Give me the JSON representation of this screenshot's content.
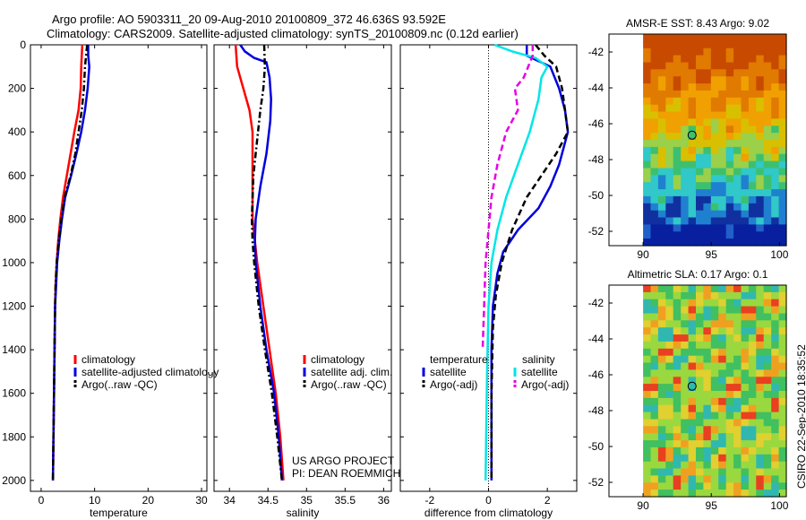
{
  "header": {
    "line1": "Argo profile: AO 5903311_20 09-Aug-2010 20100809_372 46.636S 93.592E",
    "line2": "Climatology: CARS2009. Satellite-adjusted climatology: synTS_20100809.nc (0.12d earlier)"
  },
  "chart_data": [
    {
      "type": "line",
      "id": "temperature",
      "xlabel": "temperature",
      "ylabel": "",
      "xlim": [
        -2,
        31
      ],
      "ylim": [
        2050,
        0
      ],
      "y_reversed": true,
      "xticks": [
        0,
        10,
        20,
        30
      ],
      "yticks": [
        0,
        200,
        400,
        600,
        800,
        1000,
        1200,
        1400,
        1600,
        1800,
        2000
      ],
      "legend": {
        "placement": "lower-middle",
        "entries": [
          "climatology",
          "satellite-adjusted climatology",
          "Argo(..raw -QC)"
        ]
      },
      "series": [
        {
          "name": "climatology",
          "color": "#ff0000",
          "dash": "solid",
          "points": [
            [
              7.7,
              0
            ],
            [
              7.6,
              50
            ],
            [
              7.5,
              100
            ],
            [
              7.4,
              200
            ],
            [
              7.0,
              300
            ],
            [
              6.2,
              400
            ],
            [
              5.5,
              500
            ],
            [
              4.8,
              600
            ],
            [
              4.1,
              700
            ],
            [
              3.6,
              800
            ],
            [
              3.2,
              900
            ],
            [
              2.9,
              1000
            ],
            [
              2.7,
              1100
            ],
            [
              2.6,
              1200
            ],
            [
              2.5,
              1400
            ],
            [
              2.4,
              1600
            ],
            [
              2.3,
              1800
            ],
            [
              2.2,
              2000
            ]
          ]
        },
        {
          "name": "satellite-adjusted climatology",
          "color": "#0000dd",
          "dash": "solid",
          "points": [
            [
              8.8,
              0
            ],
            [
              8.8,
              50
            ],
            [
              9.0,
              100
            ],
            [
              8.7,
              200
            ],
            [
              8.2,
              300
            ],
            [
              7.5,
              400
            ],
            [
              6.6,
              500
            ],
            [
              5.6,
              600
            ],
            [
              4.5,
              700
            ],
            [
              3.9,
              800
            ],
            [
              3.4,
              900
            ],
            [
              3.0,
              1000
            ],
            [
              2.8,
              1100
            ],
            [
              2.6,
              1200
            ],
            [
              2.5,
              1400
            ],
            [
              2.4,
              1600
            ],
            [
              2.3,
              1800
            ],
            [
              2.2,
              2000
            ]
          ]
        },
        {
          "name": "Argo(..raw -QC)",
          "color": "#000000",
          "dash": "dashdot",
          "points": [
            [
              8.6,
              0
            ],
            [
              8.4,
              50
            ],
            [
              8.2,
              100
            ],
            [
              8.0,
              200
            ],
            [
              7.6,
              300
            ],
            [
              7.0,
              400
            ],
            [
              6.4,
              500
            ],
            [
              5.5,
              600
            ],
            [
              4.4,
              700
            ],
            [
              3.8,
              800
            ],
            [
              3.3,
              900
            ],
            [
              2.9,
              1000
            ],
            [
              2.7,
              1100
            ],
            [
              2.6,
              1200
            ],
            [
              2.5,
              1400
            ],
            [
              2.4,
              1600
            ],
            [
              2.3,
              1800
            ],
            [
              2.2,
              2000
            ]
          ]
        }
      ]
    },
    {
      "type": "line",
      "id": "salinity",
      "xlabel": "salinity",
      "ylabel": "",
      "xlim": [
        33.8,
        36.1
      ],
      "ylim": [
        2050,
        0
      ],
      "y_reversed": true,
      "xticks": [
        34,
        34.5,
        35,
        35.5,
        36
      ],
      "xticklabels": [
        "34",
        "34.5",
        "35",
        "35.5",
        "36"
      ],
      "legend": {
        "placement": "lower-right",
        "entries": [
          "climatology",
          "satellite adj. clim.",
          "Argo(..raw -QC)"
        ]
      },
      "annotations": [
        "US ARGO PROJECT",
        "PI: DEAN ROEMMICH"
      ],
      "series": [
        {
          "name": "climatology",
          "color": "#ff0000",
          "dash": "solid",
          "points": [
            [
              34.08,
              0
            ],
            [
              34.1,
              100
            ],
            [
              34.18,
              200
            ],
            [
              34.26,
              300
            ],
            [
              34.3,
              400
            ],
            [
              34.3,
              600
            ],
            [
              34.3,
              800
            ],
            [
              34.33,
              900
            ],
            [
              34.36,
              1000
            ],
            [
              34.44,
              1200
            ],
            [
              34.52,
              1400
            ],
            [
              34.6,
              1600
            ],
            [
              34.66,
              1800
            ],
            [
              34.7,
              2000
            ]
          ]
        },
        {
          "name": "satellite adj. clim.",
          "color": "#0000dd",
          "dash": "solid",
          "points": [
            [
              34.14,
              0
            ],
            [
              34.2,
              30
            ],
            [
              34.32,
              60
            ],
            [
              34.48,
              80
            ],
            [
              34.52,
              150
            ],
            [
              34.54,
              250
            ],
            [
              34.53,
              350
            ],
            [
              34.48,
              500
            ],
            [
              34.4,
              650
            ],
            [
              34.34,
              800
            ],
            [
              34.33,
              900
            ],
            [
              34.34,
              1000
            ],
            [
              34.4,
              1200
            ],
            [
              34.48,
              1400
            ],
            [
              34.58,
              1600
            ],
            [
              34.64,
              1800
            ],
            [
              34.68,
              2000
            ]
          ]
        },
        {
          "name": "Argo(..raw -QC)",
          "color": "#000000",
          "dash": "dashdot",
          "points": [
            [
              34.45,
              0
            ],
            [
              34.46,
              100
            ],
            [
              34.44,
              200
            ],
            [
              34.4,
              300
            ],
            [
              34.37,
              400
            ],
            [
              34.31,
              600
            ],
            [
              34.29,
              800
            ],
            [
              34.3,
              900
            ],
            [
              34.32,
              1000
            ],
            [
              34.38,
              1200
            ],
            [
              34.46,
              1400
            ],
            [
              34.55,
              1600
            ],
            [
              34.62,
              1800
            ],
            [
              34.68,
              2000
            ]
          ]
        }
      ]
    },
    {
      "type": "line",
      "id": "difference",
      "xlabel": "difference from climatology",
      "ylabel": "",
      "xlim": [
        -3,
        3
      ],
      "ylim": [
        2050,
        0
      ],
      "y_reversed": true,
      "xticks": [
        -2,
        0,
        2
      ],
      "zero_line": true,
      "legend": {
        "placement": "lower-middle",
        "group_titles": [
          "temperature",
          "salinity"
        ],
        "entries": [
          "satellite",
          "Argo(-adj)",
          "satellite",
          "Argo(-adj)"
        ]
      },
      "series": [
        {
          "name": "satellite",
          "group": "temperature",
          "color": "#0000dd",
          "dash": "solid",
          "points": [
            [
              1.3,
              0
            ],
            [
              1.3,
              50
            ],
            [
              2.1,
              100
            ],
            [
              2.4,
              200
            ],
            [
              2.6,
              300
            ],
            [
              2.7,
              400
            ],
            [
              2.4,
              550
            ],
            [
              2.1,
              650
            ],
            [
              1.7,
              750
            ],
            [
              1.0,
              850
            ],
            [
              0.5,
              950
            ],
            [
              0.3,
              1050
            ],
            [
              0.15,
              1200
            ],
            [
              0.1,
              1400
            ],
            [
              0.1,
              1600
            ],
            [
              0.1,
              2000
            ]
          ]
        },
        {
          "name": "Argo(-adj)",
          "group": "temperature",
          "color": "#000000",
          "dash": "dashed",
          "points": [
            [
              1.6,
              0
            ],
            [
              1.9,
              50
            ],
            [
              2.3,
              100
            ],
            [
              2.5,
              200
            ],
            [
              2.6,
              300
            ],
            [
              2.7,
              400
            ],
            [
              2.3,
              500
            ],
            [
              1.8,
              600
            ],
            [
              1.3,
              700
            ],
            [
              0.8,
              850
            ],
            [
              0.45,
              1000
            ],
            [
              0.25,
              1150
            ],
            [
              0.15,
              1300
            ],
            [
              0.1,
              1600
            ],
            [
              0.1,
              2000
            ]
          ]
        },
        {
          "name": "satellite",
          "group": "salinity",
          "color": "#00e6e6",
          "dash": "solid",
          "points": [
            [
              0.2,
              0
            ],
            [
              0.8,
              30
            ],
            [
              1.6,
              60
            ],
            [
              2.0,
              100
            ],
            [
              1.8,
              150
            ],
            [
              1.7,
              250
            ],
            [
              1.4,
              400
            ],
            [
              1.0,
              550
            ],
            [
              0.6,
              700
            ],
            [
              0.3,
              850
            ],
            [
              0.1,
              1000
            ],
            [
              0.0,
              1200
            ],
            [
              -0.05,
              1500
            ],
            [
              -0.1,
              2000
            ]
          ]
        },
        {
          "name": "Argo(-adj)",
          "group": "salinity",
          "color": "#e600e6",
          "dash": "dashed",
          "points": [
            [
              1.5,
              0
            ],
            [
              1.5,
              50
            ],
            [
              1.2,
              150
            ],
            [
              0.9,
              200
            ],
            [
              1.0,
              300
            ],
            [
              0.6,
              400
            ],
            [
              0.3,
              550
            ],
            [
              0.1,
              700
            ],
            [
              0.0,
              850
            ],
            [
              -0.1,
              1000
            ],
            [
              -0.15,
              1200
            ],
            [
              -0.2,
              1400
            ]
          ]
        }
      ]
    },
    {
      "type": "heatmap",
      "id": "sst-map",
      "title": "AMSR-E SST: 8.43 Argo: 9.02",
      "xlim": [
        87.5,
        100.5
      ],
      "ylim": [
        -52.8,
        -41
      ],
      "xticks": [
        90,
        95,
        100
      ],
      "yticks": [
        -42,
        -44,
        -46,
        -48,
        -50,
        -52
      ],
      "marker": {
        "lon": 93.592,
        "lat": -46.636
      }
    },
    {
      "type": "heatmap",
      "id": "sla-map",
      "title": "Altimetric SLA: 0.17 Argo: 0.1",
      "xlim": [
        87.5,
        100.5
      ],
      "ylim": [
        -52.8,
        -41
      ],
      "xticks": [
        90,
        95,
        100
      ],
      "yticks": [
        -42,
        -44,
        -46,
        -48,
        -50,
        -52
      ],
      "marker": {
        "lon": 93.592,
        "lat": -46.636
      }
    }
  ],
  "footer": {
    "stamp": "CSIRO 22-Sep-2010 18:35:52"
  }
}
